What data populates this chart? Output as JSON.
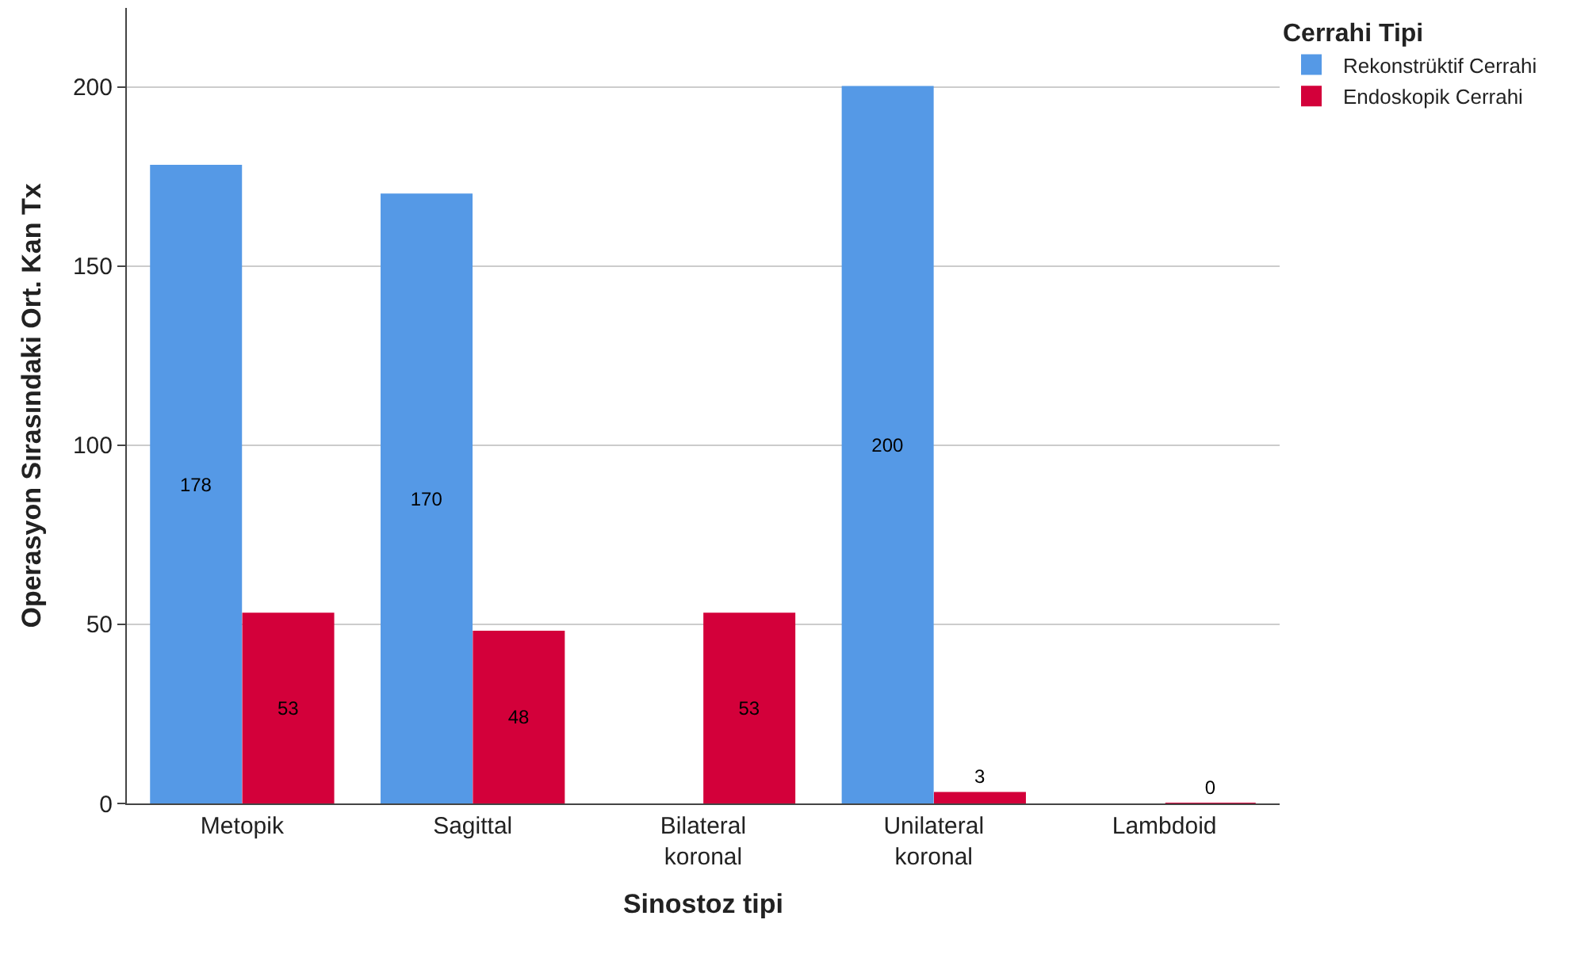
{
  "chart_data": {
    "type": "bar",
    "xlabel": "Sinostoz tipi",
    "ylabel": "Operasyon Sırasındaki Ort. Kan Tx",
    "legend_title": "Cerrahi Tipi",
    "categories": [
      "Metopik",
      "Sagittal",
      "Bilateral koronal",
      "Unilateral koronal",
      "Lambdoid"
    ],
    "series": [
      {
        "name": "Rekonstrüktif Cerrahi",
        "color": "#5599e6",
        "values": [
          178,
          170,
          null,
          200,
          null
        ]
      },
      {
        "name": "Endoskopik Cerrahi",
        "color": "#d3003a",
        "values": [
          53,
          48,
          53,
          3,
          0
        ]
      }
    ],
    "ylim": [
      0,
      222
    ],
    "yticks": [
      0,
      50,
      100,
      150,
      200
    ],
    "grid": "y",
    "legend": "top right",
    "data_labels": true
  }
}
